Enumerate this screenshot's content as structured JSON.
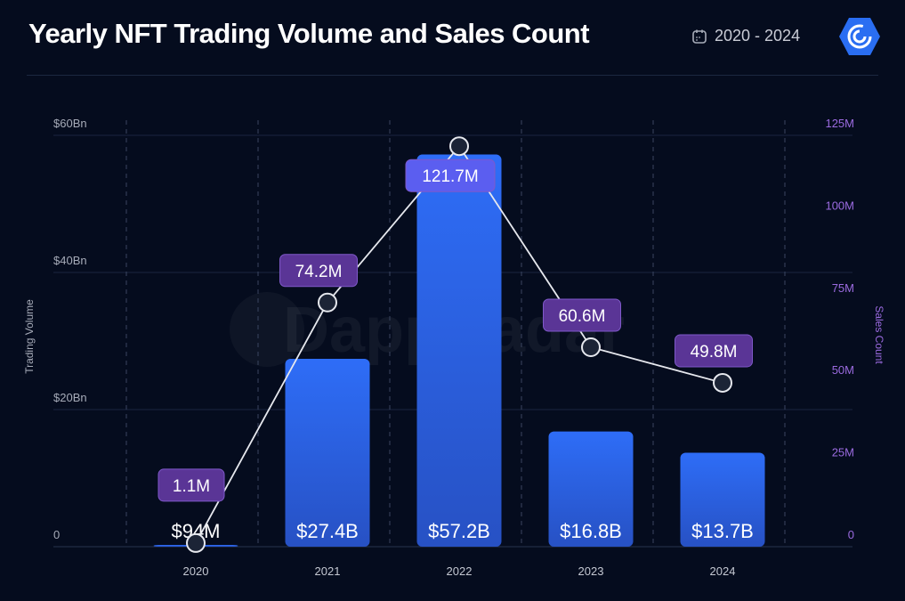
{
  "header": {
    "title": "Yearly NFT Trading Volume and Sales Count",
    "date_range": "2020 - 2024",
    "calendar_icon": "calendar-icon",
    "logo": "DappRadar"
  },
  "chart_data": {
    "type": "bar+line",
    "title": "Yearly NFT Trading Volume and Sales Count",
    "categories": [
      "2020",
      "2021",
      "2022",
      "2023",
      "2024"
    ],
    "series": [
      {
        "name": "Trading Volume",
        "type": "bar",
        "axis": "left",
        "values": [
          0.094,
          27.4,
          57.2,
          16.8,
          13.7
        ],
        "labels": [
          "$94M",
          "$27.4B",
          "$57.2B",
          "$16.8B",
          "$13.7B"
        ],
        "color": "#2d6af5"
      },
      {
        "name": "Sales Count",
        "type": "line",
        "axis": "right",
        "values": [
          1.1,
          74.2,
          121.7,
          60.6,
          49.8
        ],
        "labels": [
          "1.1M",
          "74.2M",
          "121.7M",
          "60.6M",
          "49.8M"
        ],
        "color": "#e6e8ee"
      }
    ],
    "ylabel": "Trading Volume",
    "y2label": "Sales Count",
    "ylim": [
      0,
      60
    ],
    "y2lim": [
      0,
      125
    ],
    "yticks": [
      "0",
      "$20Bn",
      "$40Bn",
      "$60Bn"
    ],
    "y2ticks": [
      "0",
      "25M",
      "50M",
      "75M",
      "100M",
      "125M"
    ],
    "grid": true,
    "watermark": "DappRadar",
    "colors": {
      "background": "#050c1e",
      "bar": "#2d6af5",
      "badge": "#5a3596",
      "badge_peak": "#5b5ef0",
      "right_axis": "#9b6be0"
    }
  }
}
